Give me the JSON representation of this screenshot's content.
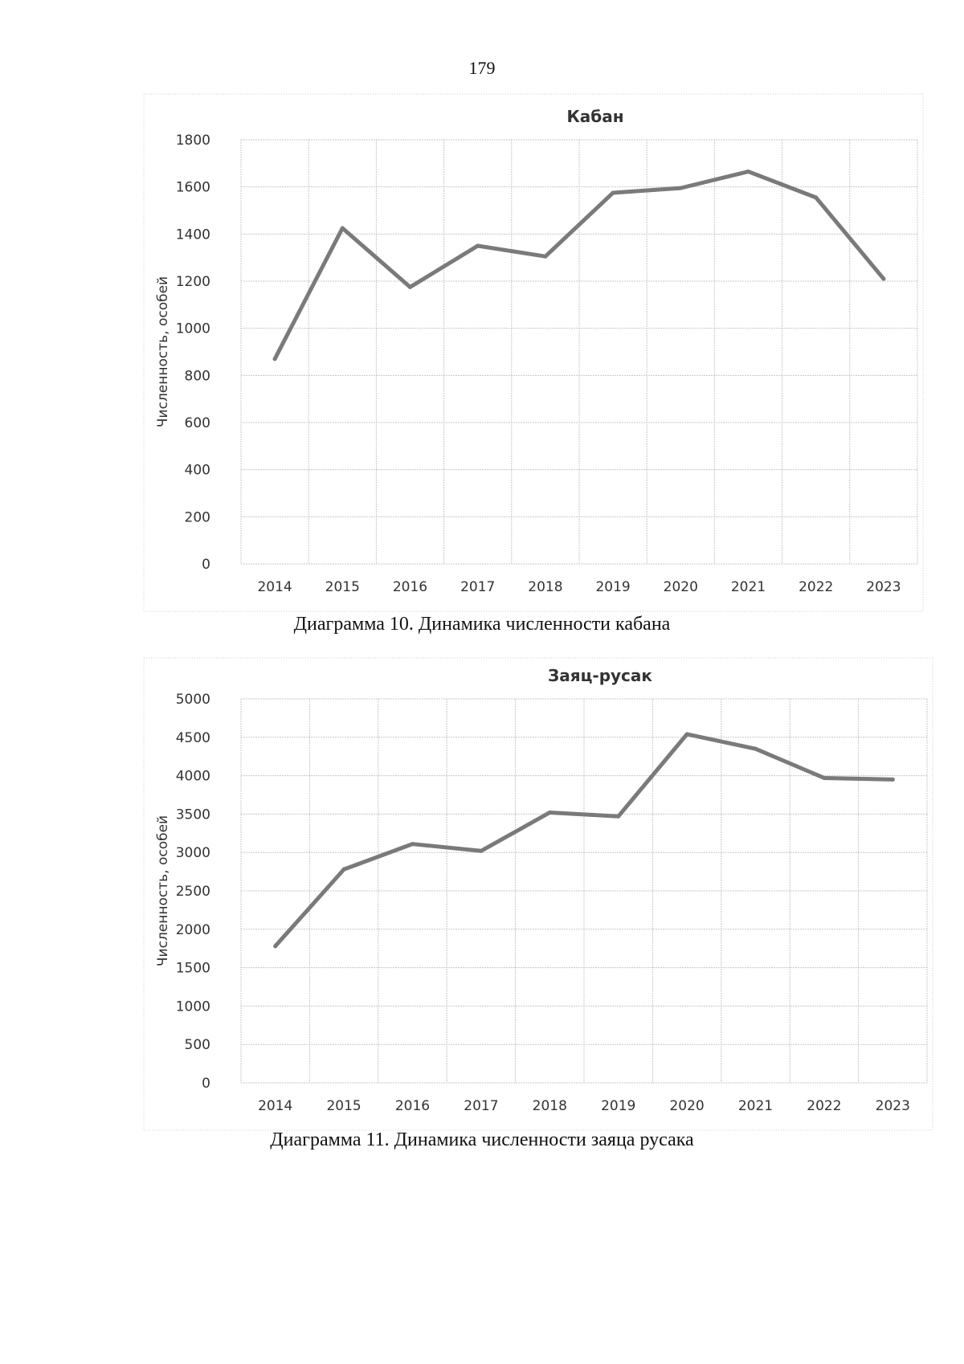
{
  "page": {
    "number": "179"
  },
  "chart_data": [
    {
      "type": "line",
      "title": "Кабан",
      "xlabel": "",
      "ylabel": "Численность, особей",
      "categories": [
        "2014",
        "2015",
        "2016",
        "2017",
        "2018",
        "2019",
        "2020",
        "2021",
        "2022",
        "2023"
      ],
      "series": [
        {
          "name": "Кабан",
          "values": [
            870,
            1425,
            1175,
            1350,
            1305,
            1575,
            1595,
            1665,
            1555,
            1210
          ]
        }
      ],
      "ylim": [
        0,
        1800
      ],
      "yticks": [
        0,
        200,
        400,
        600,
        800,
        1000,
        1200,
        1400,
        1600,
        1800
      ],
      "grid": true,
      "line_color": "#7a7a7a",
      "caption": "Диаграмма 10. Динамика численности кабана"
    },
    {
      "type": "line",
      "title": "Заяц-русак",
      "xlabel": "",
      "ylabel": "Численность, особей",
      "categories": [
        "2014",
        "2015",
        "2016",
        "2017",
        "2018",
        "2019",
        "2020",
        "2021",
        "2022",
        "2023"
      ],
      "series": [
        {
          "name": "Заяц-русак",
          "values": [
            1780,
            2780,
            3110,
            3020,
            3520,
            3470,
            4540,
            4350,
            3970,
            3950
          ]
        }
      ],
      "ylim": [
        0,
        5000
      ],
      "yticks": [
        0,
        500,
        1000,
        1500,
        2000,
        2500,
        3000,
        3500,
        4000,
        4500,
        5000
      ],
      "grid": true,
      "line_color": "#7a7a7a",
      "caption": "Диаграмма 11. Динамика численности заяца русака"
    }
  ]
}
